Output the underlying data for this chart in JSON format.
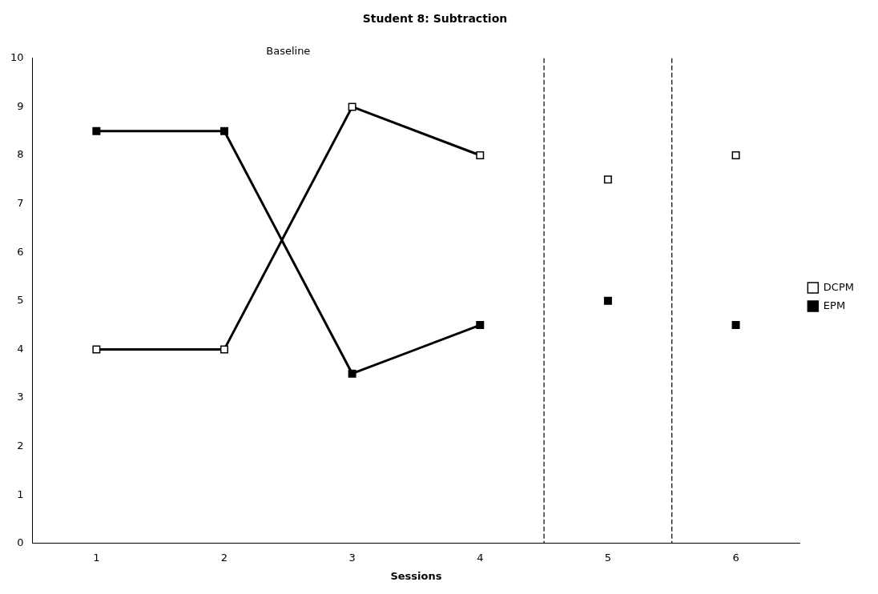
{
  "chart_data": {
    "type": "line",
    "title": "Student 8: Subtraction",
    "xlabel": "Sessions",
    "xlim": [
      0.5,
      6.5
    ],
    "xticks": [
      1,
      2,
      3,
      4,
      5,
      6
    ],
    "ylim": [
      0,
      10
    ],
    "yticks": [
      0,
      1,
      2,
      3,
      4,
      5,
      6,
      7,
      8,
      9,
      10
    ],
    "series": [
      {
        "name": "DCPM",
        "color": "#ffffff",
        "x": [
          1,
          2,
          3,
          4
        ],
        "values": [
          4,
          4,
          9,
          8
        ]
      },
      {
        "name": "EPM",
        "color": "#000000",
        "x": [
          1,
          2,
          3,
          4
        ],
        "values": [
          8.5,
          8.5,
          3.5,
          4.5
        ]
      },
      {
        "type": "scatter",
        "color": "#ffffff",
        "x": [
          5,
          6
        ],
        "values": [
          7.5,
          8
        ]
      },
      {
        "type": "scatter",
        "color": "#000000",
        "x": [
          5,
          6
        ],
        "values": [
          5,
          4.5
        ]
      }
    ],
    "ref_lines": [
      {
        "axis": "x",
        "value": 4.5,
        "line_style": "dashed"
      },
      {
        "axis": "x",
        "value": 5.5,
        "line_style": "dashed"
      }
    ],
    "annotations": [
      "Baseline"
    ],
    "grid": false,
    "legend": "right",
    "marker": "square",
    "line_style": "solid"
  }
}
